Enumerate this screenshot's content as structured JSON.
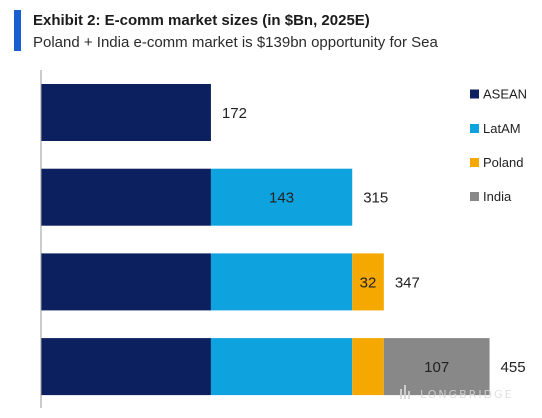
{
  "branding": {
    "accent_color": "#1a5fd0"
  },
  "chart_data": {
    "type": "bar",
    "orientation": "horizontal",
    "stacked": true,
    "title": "Exhibit 2: E-comm market sizes (in $Bn, 2025E)",
    "subtitle": "Poland + India e-comm market is $139bn opportunity for Sea",
    "grid": false,
    "legend": "right",
    "series": [
      {
        "name": "ASEAN",
        "color": "#0c1f5e",
        "values": [
          172,
          172,
          172,
          172
        ],
        "data_labels": [
          null,
          null,
          null,
          null
        ]
      },
      {
        "name": "LatAM",
        "color": "#0ea2de",
        "values": [
          null,
          143,
          143,
          143
        ],
        "data_labels": [
          null,
          143,
          null,
          null
        ]
      },
      {
        "name": "Poland",
        "color": "#f5a800",
        "values": [
          null,
          null,
          32,
          32
        ],
        "data_labels": [
          null,
          null,
          32,
          null
        ]
      },
      {
        "name": "India",
        "color": "#888888",
        "values": [
          null,
          null,
          null,
          107
        ],
        "data_labels": [
          null,
          null,
          null,
          107
        ]
      }
    ],
    "totals": [
      172,
      315,
      347,
      455
    ]
  },
  "watermark": {
    "text": "LONGBRIDGE"
  }
}
